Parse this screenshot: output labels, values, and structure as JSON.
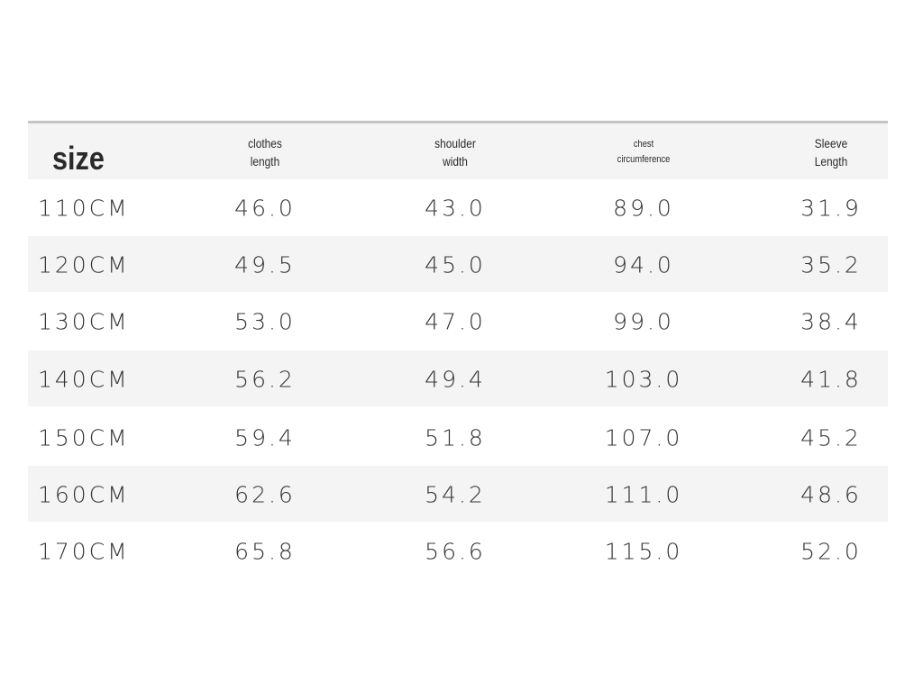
{
  "table": {
    "header": [
      [
        "size"
      ],
      [
        "clothes",
        "length"
      ],
      [
        "shoulder",
        "width"
      ],
      [
        "chest",
        "circumference"
      ],
      [
        "Sleeve",
        "Length"
      ]
    ],
    "rows": [
      [
        "110CM",
        "46.0",
        "43.0",
        "89.0",
        "31.9"
      ],
      [
        "120CM",
        "49.5",
        "45.0",
        "94.0",
        "35.2"
      ],
      [
        "130CM",
        "53.0",
        "47.0",
        "99.0",
        "38.4"
      ],
      [
        "140CM",
        "56.2",
        "49.4",
        "103.0",
        "41.8"
      ],
      [
        "150CM",
        "59.4",
        "51.8",
        "107.0",
        "45.2"
      ],
      [
        "160CM",
        "62.6",
        "54.2",
        "111.0",
        "48.6"
      ],
      [
        "170CM",
        "65.8",
        "56.6",
        "115.0",
        "52.0"
      ]
    ]
  }
}
